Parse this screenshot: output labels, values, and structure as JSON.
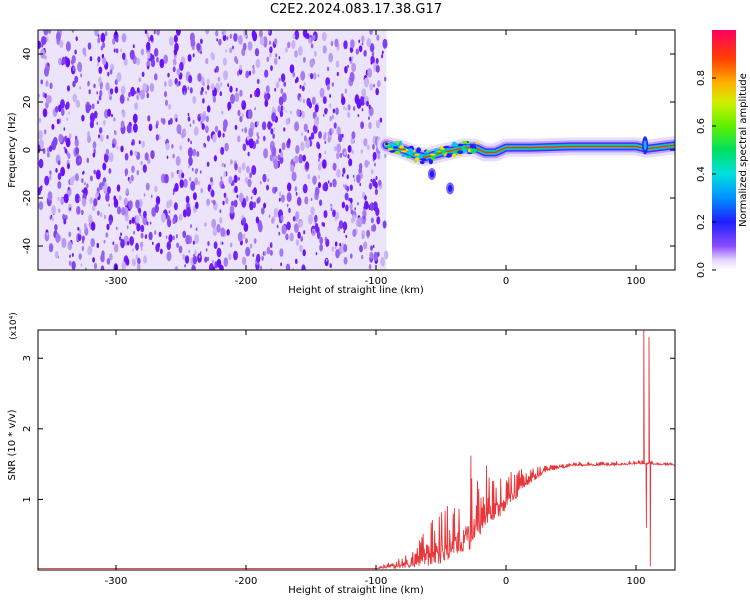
{
  "title": "C2E2.2024.083.17.38.G17",
  "chart_data": [
    {
      "type": "heatmap",
      "xlabel": "Height of straight line (km)",
      "ylabel": "Frequency (Hz)",
      "xlim": [
        -360,
        130
      ],
      "ylim": [
        -50,
        50
      ],
      "xticks": [
        -300,
        -200,
        -100,
        0,
        100
      ],
      "yticks": [
        -40,
        -20,
        0,
        20,
        40
      ],
      "noise_region": {
        "x_range": [
          -360,
          -92
        ],
        "y_range": [
          -50,
          50
        ]
      },
      "signal_track": [
        {
          "x": -92,
          "y": 2
        },
        {
          "x": -85,
          "y": 1
        },
        {
          "x": -78,
          "y": 0
        },
        {
          "x": -70,
          "y": -2
        },
        {
          "x": -62,
          "y": -3
        },
        {
          "x": -55,
          "y": -2
        },
        {
          "x": -48,
          "y": -1
        },
        {
          "x": -40,
          "y": 0
        },
        {
          "x": -32,
          "y": 1
        },
        {
          "x": -24,
          "y": 1
        },
        {
          "x": -16,
          "y": -1
        },
        {
          "x": -8,
          "y": -1
        },
        {
          "x": 0,
          "y": 1
        },
        {
          "x": 20,
          "y": 1
        },
        {
          "x": 50,
          "y": 1.5
        },
        {
          "x": 80,
          "y": 1.5
        },
        {
          "x": 100,
          "y": 1.5
        },
        {
          "x": 108,
          "y": 0.5
        },
        {
          "x": 130,
          "y": 2
        }
      ],
      "side_blobs": [
        {
          "x": -57,
          "y": -10
        },
        {
          "x": -43,
          "y": -16
        }
      ],
      "colorbar": {
        "label": "Normalized spectral amplitude",
        "ticks": [
          0.0,
          0.2,
          0.4,
          0.6,
          0.8
        ],
        "tick_labels": [
          "0.0",
          "0.2",
          "0.4",
          "0.6",
          "0.8"
        ],
        "range": [
          0,
          1
        ]
      }
    },
    {
      "type": "line",
      "xlabel": "Height of straight line (km)",
      "ylabel": "SNR (10 * v/v)",
      "y_multiplier": "(x10⁴)",
      "xlim": [
        -360,
        130
      ],
      "ylim": [
        0,
        3.4
      ],
      "xticks": [
        -300,
        -200,
        -100,
        0,
        100
      ],
      "yticks": [
        1,
        2,
        3
      ],
      "color": "#e8373a",
      "envelope": [
        {
          "x": -360,
          "base": 0.02,
          "peak": 0.02
        },
        {
          "x": -100,
          "base": 0.02,
          "peak": 0.02
        },
        {
          "x": -72,
          "base": 0.03,
          "peak": 0.25
        },
        {
          "x": -60,
          "base": 0.05,
          "peak": 0.65
        },
        {
          "x": -50,
          "base": 0.08,
          "peak": 0.85
        },
        {
          "x": -40,
          "base": 0.15,
          "peak": 1.0
        },
        {
          "x": -30,
          "base": 0.25,
          "peak": 1.35
        },
        {
          "x": -20,
          "base": 0.45,
          "peak": 1.35
        },
        {
          "x": -10,
          "base": 0.65,
          "peak": 1.3
        },
        {
          "x": 0,
          "base": 0.85,
          "peak": 1.4
        },
        {
          "x": 15,
          "base": 1.15,
          "peak": 1.45
        },
        {
          "x": 30,
          "base": 1.38,
          "peak": 1.5
        },
        {
          "x": 50,
          "base": 1.47,
          "peak": 1.53
        },
        {
          "x": 80,
          "base": 1.48,
          "peak": 1.54
        },
        {
          "x": 102,
          "base": 1.5,
          "peak": 1.56
        },
        {
          "x": 130,
          "base": 1.48,
          "peak": 1.52
        }
      ],
      "spikes": [
        {
          "x": -27,
          "y": 1.62
        },
        {
          "x": -15,
          "y": 1.48
        },
        {
          "x": 106,
          "y": 3.4
        },
        {
          "x": 108,
          "y": 0.6
        },
        {
          "x": 110,
          "y": 3.3
        },
        {
          "x": 111,
          "y": 0.05
        }
      ]
    }
  ]
}
